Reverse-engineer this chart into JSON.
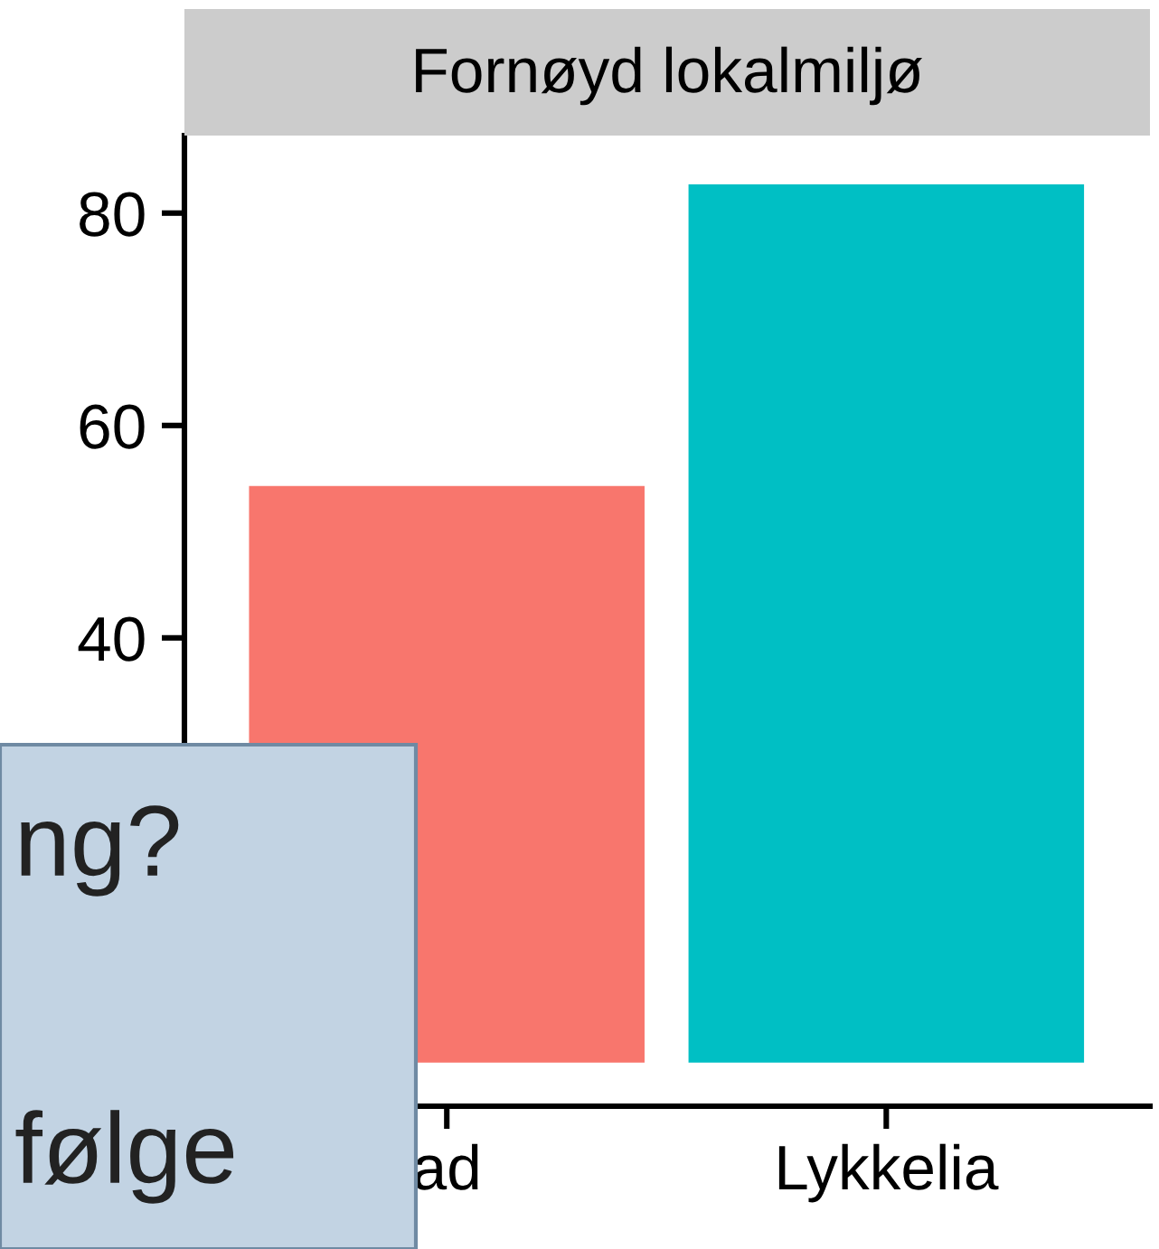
{
  "chart_data": {
    "type": "bar",
    "title": "Fornøyd lokalmiljø",
    "categories": [
      "ad",
      "Lykkelia"
    ],
    "values": [
      54.3,
      82.7
    ],
    "colors": [
      "#f8766d",
      "#00bfc4"
    ],
    "ylim": [
      -4.1,
      87.3
    ],
    "yticks": [
      40,
      60,
      80
    ],
    "grid": false,
    "annotations": [
      "ng?",
      "følge"
    ]
  }
}
